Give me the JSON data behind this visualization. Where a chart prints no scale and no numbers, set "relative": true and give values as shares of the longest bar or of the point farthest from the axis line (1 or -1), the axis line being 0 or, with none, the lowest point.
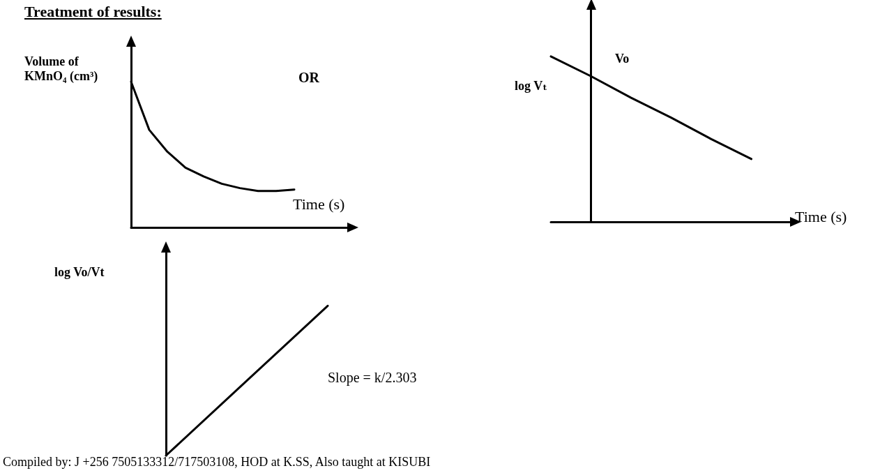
{
  "chart_data": [
    {
      "type": "line",
      "title": "Treatment of results:",
      "ylabel": "Volume of KMnO₄ (cm³)",
      "xlabel": "Time (s)",
      "annotations": [
        "OR"
      ],
      "relative": true,
      "marker": "none",
      "color": "#000000",
      "categories": [
        null,
        null,
        null,
        null,
        null,
        null,
        null,
        null,
        null,
        null,
        null,
        null,
        null
      ],
      "values": [
        1,
        0.67,
        0.52,
        0.41,
        0.35,
        0.3,
        0.27,
        0.25,
        0.25,
        0.26,
        null,
        null,
        null
      ]
    },
    {
      "type": "line",
      "ylabel": "log Vₜ",
      "xlabel": "Time (s)",
      "annotations": [
        "Vo"
      ],
      "relative": true,
      "marker": "none",
      "color": "#000000",
      "categories": [
        null,
        null,
        null,
        null,
        null,
        null,
        null
      ],
      "values": [
        1,
        0.88,
        0.75,
        0.63,
        0.5,
        0.38,
        null
      ]
    },
    {
      "type": "line",
      "ylabel": "log Vo/Vt",
      "annotations": [
        "Slope = k/2.303",
        "Compiled by: J +256 7505133312/717503108, HOD at K.SS, Also taught at KISUBI"
      ],
      "relative": true,
      "marker": "none",
      "color": "#000000",
      "categories": [
        null,
        null,
        null
      ],
      "values": [
        0,
        0.5,
        1
      ]
    }
  ]
}
